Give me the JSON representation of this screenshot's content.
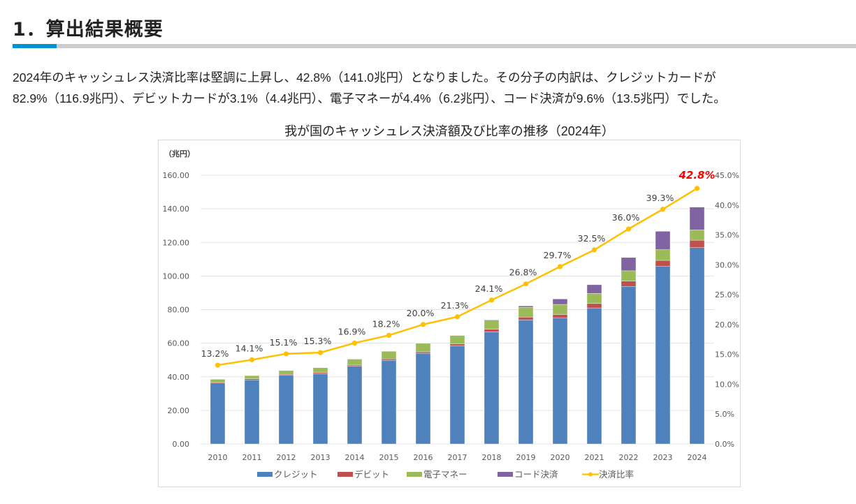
{
  "section": {
    "heading": "1．算出結果概要",
    "paragraph_line1": "2024年のキャッシュレス決済比率は堅調に上昇し、42.8%（141.0兆円）となりました。その分子の内訳は、クレジットカードが",
    "paragraph_line2": "82.9%（116.9兆円）、デビットカードが3.1%（4.4兆円）、電子マネーが4.4%（6.2兆円）、コード決済が9.6%（13.5兆円）でした。",
    "accent_color": "#0093d2"
  },
  "chart_data": {
    "type": "bar",
    "stacked": true,
    "title": "我が国のキャッシュレス決済額及び比率の推移（2024年）",
    "xlabel": "",
    "ylabel": "（兆円）",
    "y2label": "",
    "categories": [
      "2010",
      "2011",
      "2012",
      "2013",
      "2014",
      "2015",
      "2016",
      "2017",
      "2018",
      "2019",
      "2020",
      "2021",
      "2022",
      "2023",
      "2024"
    ],
    "ylim": [
      0,
      160
    ],
    "y_ticks": [
      "0.00",
      "20.00",
      "40.00",
      "60.00",
      "80.00",
      "100.00",
      "120.00",
      "140.00",
      "160.00"
    ],
    "y2lim": [
      0,
      45
    ],
    "y2_ticks": [
      "0.0%",
      "5.0%",
      "10.0%",
      "15.0%",
      "20.0%",
      "25.0%",
      "30.0%",
      "35.0%",
      "40.0%",
      "45.0%"
    ],
    "grid": true,
    "legend_position": "bottom",
    "series": [
      {
        "name": "クレジット",
        "color": "#4f81bd",
        "kind": "bar",
        "values": [
          36.3,
          38.1,
          40.8,
          41.8,
          46.3,
          49.8,
          53.9,
          58.4,
          66.7,
          73.8,
          74.9,
          81.0,
          93.8,
          105.7,
          116.9
        ]
      },
      {
        "name": "デビット",
        "color": "#c0504d",
        "kind": "bar",
        "values": [
          0.6,
          0.7,
          0.7,
          0.8,
          0.7,
          0.8,
          0.9,
          1.1,
          1.6,
          1.7,
          2.2,
          2.6,
          3.2,
          3.6,
          4.4
        ]
      },
      {
        "name": "電子マネー",
        "color": "#9bbb59",
        "kind": "bar",
        "values": [
          1.6,
          1.9,
          2.2,
          2.8,
          3.5,
          4.6,
          5.1,
          5.1,
          5.5,
          5.8,
          6.0,
          6.0,
          6.1,
          6.4,
          6.2
        ]
      },
      {
        "name": "コード決済",
        "color": "#8064a2",
        "kind": "bar",
        "values": [
          0,
          0,
          0,
          0,
          0,
          0,
          0,
          0,
          0.2,
          0.9,
          3.2,
          5.2,
          7.9,
          10.9,
          13.5
        ]
      },
      {
        "name": "決済比率",
        "color": "#ffc000",
        "kind": "line",
        "axis": "right",
        "values": [
          13.2,
          14.1,
          15.1,
          15.3,
          16.9,
          18.2,
          20.0,
          21.3,
          24.1,
          26.8,
          29.7,
          32.5,
          36.0,
          39.3,
          42.8
        ],
        "labels": [
          "13.2%",
          "14.1%",
          "15.1%",
          "15.3%",
          "16.9%",
          "18.2%",
          "20.0%",
          "21.3%",
          "24.1%",
          "26.8%",
          "29.7%",
          "32.5%",
          "36.0%",
          "39.3%",
          "42.8%"
        ],
        "highlight_index": 14,
        "highlight_color": "#ff0000"
      }
    ]
  }
}
